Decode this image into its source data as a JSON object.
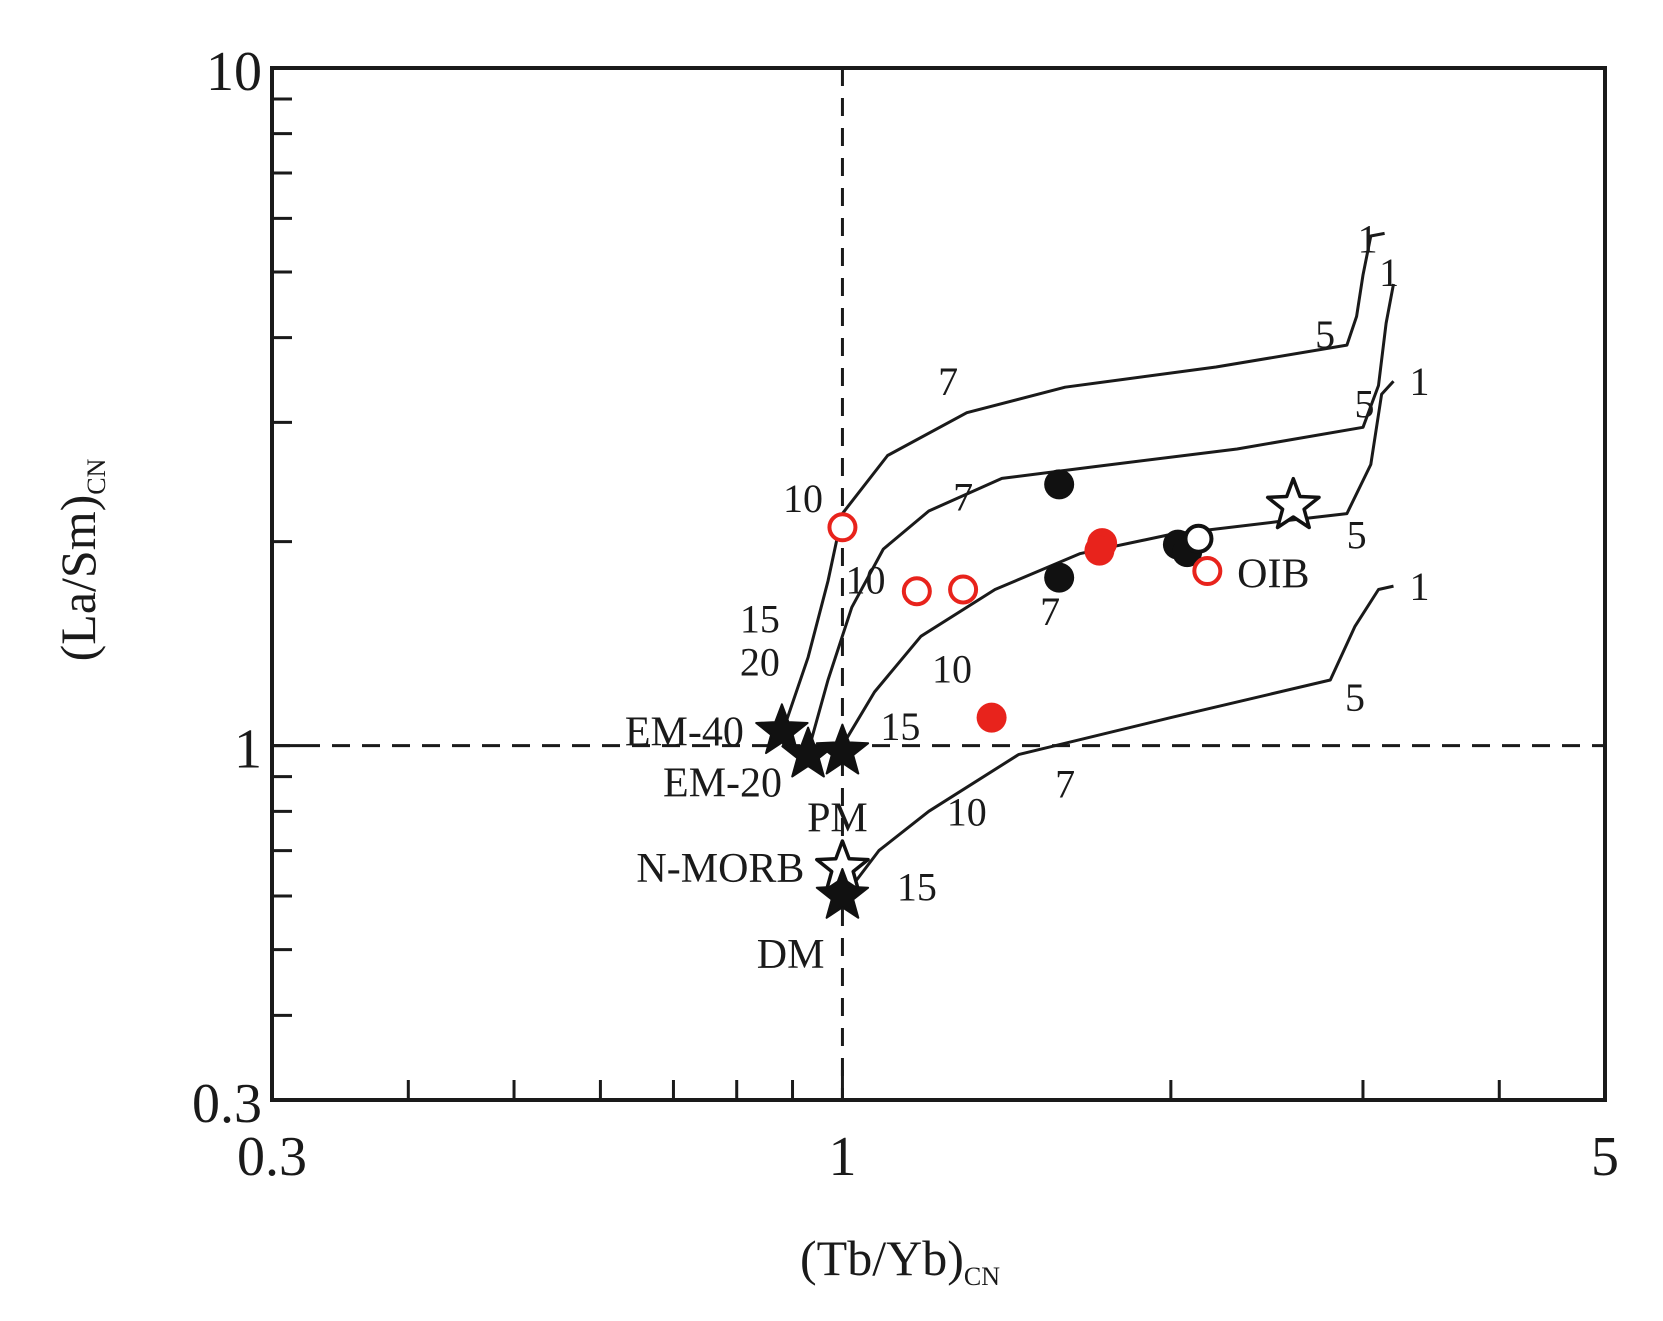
{
  "chart_data": {
    "type": "scatter",
    "title": "",
    "xlabel": {
      "main": "(Tb/Yb)",
      "sub": "CN"
    },
    "ylabel": {
      "main": "(La/Sm)",
      "sub": "CN"
    },
    "x_scale": "log",
    "y_scale": "log",
    "xlim": [
      0.3,
      5
    ],
    "ylim": [
      0.3,
      10
    ],
    "x_ticks_labeled": [
      {
        "value": 0.3,
        "label": "0.3"
      },
      {
        "value": 1,
        "label": "1"
      },
      {
        "value": 5,
        "label": "5"
      }
    ],
    "y_ticks_labeled": [
      {
        "value": 0.3,
        "label": "0.3"
      },
      {
        "value": 1,
        "label": "1"
      },
      {
        "value": 10,
        "label": "10"
      }
    ],
    "x_minor_ticks": [
      0.4,
      0.5,
      0.6,
      0.7,
      0.8,
      0.9,
      2,
      3,
      4
    ],
    "y_minor_ticks": [
      0.4,
      0.5,
      0.6,
      0.7,
      0.8,
      0.9,
      2,
      3,
      4,
      5,
      6,
      7,
      8,
      9
    ],
    "reference_lines": [
      {
        "axis": "x",
        "value": 1,
        "style": "dashed"
      },
      {
        "axis": "y",
        "value": 1,
        "style": "dashed"
      }
    ],
    "grid": false,
    "colors": {
      "axis": "#1a1a1a",
      "red": "#e8231c",
      "black": "#111111"
    },
    "melting_curves": [
      {
        "source": "EM-40",
        "points": [
          [
            0.88,
            1.04
          ],
          [
            0.93,
            1.35
          ],
          [
            0.97,
            1.75
          ],
          [
            1.0,
            2.2
          ],
          [
            1.1,
            2.68
          ],
          [
            1.3,
            3.1
          ],
          [
            1.6,
            3.38
          ],
          [
            2.2,
            3.62
          ],
          [
            2.9,
            3.9
          ],
          [
            2.96,
            4.3
          ],
          [
            3.0,
            4.95
          ],
          [
            3.05,
            5.65
          ],
          [
            3.14,
            5.7
          ]
        ],
        "labels": [
          {
            "text": "20",
            "x": 0.84,
            "y": 1.33
          },
          {
            "text": "15",
            "x": 0.84,
            "y": 1.54
          },
          {
            "text": "10",
            "x": 0.92,
            "y": 2.32
          },
          {
            "text": "7",
            "x": 1.25,
            "y": 3.45
          },
          {
            "text": "5",
            "x": 2.77,
            "y": 4.05
          },
          {
            "text": "1",
            "x": 3.03,
            "y": 5.6
          }
        ]
      },
      {
        "source": "EM-20",
        "points": [
          [
            0.93,
            0.98
          ],
          [
            0.97,
            1.25
          ],
          [
            1.02,
            1.6
          ],
          [
            1.09,
            1.95
          ],
          [
            1.2,
            2.22
          ],
          [
            1.4,
            2.48
          ],
          [
            1.7,
            2.58
          ],
          [
            2.3,
            2.74
          ],
          [
            3.0,
            2.95
          ],
          [
            3.1,
            3.4
          ],
          [
            3.15,
            4.2
          ],
          [
            3.2,
            4.8
          ]
        ],
        "labels": [
          {
            "text": "10",
            "x": 1.05,
            "y": 1.76
          },
          {
            "text": "7",
            "x": 1.29,
            "y": 2.33
          },
          {
            "text": "5",
            "x": 3.01,
            "y": 3.2
          },
          {
            "text": "1",
            "x": 3.17,
            "y": 5.0
          }
        ]
      },
      {
        "source": "PM",
        "points": [
          [
            1.0,
            1.0
          ],
          [
            1.07,
            1.2
          ],
          [
            1.18,
            1.45
          ],
          [
            1.38,
            1.7
          ],
          [
            1.65,
            1.92
          ],
          [
            2.0,
            2.05
          ],
          [
            2.5,
            2.14
          ],
          [
            2.9,
            2.2
          ],
          [
            3.05,
            2.6
          ],
          [
            3.12,
            3.3
          ],
          [
            3.2,
            3.45
          ]
        ],
        "labels": [
          {
            "text": "15",
            "x": 1.13,
            "y": 1.07
          },
          {
            "text": "10",
            "x": 1.26,
            "y": 1.3
          },
          {
            "text": "7",
            "x": 1.55,
            "y": 1.58
          },
          {
            "text": "5",
            "x": 2.96,
            "y": 2.05
          },
          {
            "text": "1",
            "x": 3.38,
            "y": 3.45
          }
        ]
      },
      {
        "source": "DM",
        "points": [
          [
            1.02,
            0.62
          ],
          [
            1.08,
            0.7
          ],
          [
            1.2,
            0.8
          ],
          [
            1.45,
            0.97
          ],
          [
            2.0,
            1.1
          ],
          [
            2.8,
            1.25
          ],
          [
            2.95,
            1.5
          ],
          [
            3.1,
            1.7
          ],
          [
            3.2,
            1.72
          ]
        ],
        "labels": [
          {
            "text": "15",
            "x": 1.17,
            "y": 0.62
          },
          {
            "text": "10",
            "x": 1.3,
            "y": 0.8
          },
          {
            "text": "7",
            "x": 1.6,
            "y": 0.88
          },
          {
            "text": "5",
            "x": 2.95,
            "y": 1.18
          },
          {
            "text": "1",
            "x": 3.38,
            "y": 1.72
          }
        ]
      }
    ],
    "series": [
      {
        "name": "",
        "marker": "filled-circle",
        "color": "#111111",
        "points": [
          [
            1.58,
            2.43
          ],
          [
            1.58,
            1.77
          ],
          [
            2.03,
            1.98
          ],
          [
            2.07,
            1.93
          ]
        ]
      },
      {
        "name": "",
        "marker": "open-circle",
        "color": "#111111",
        "points": [
          [
            2.12,
            2.02
          ]
        ]
      },
      {
        "name": "",
        "marker": "filled-circle",
        "color": "#e8231c",
        "points": [
          [
            1.73,
            1.99
          ],
          [
            1.72,
            1.94
          ],
          [
            1.37,
            1.1
          ]
        ]
      },
      {
        "name": "",
        "marker": "open-circle",
        "color": "#e8231c",
        "points": [
          [
            1.0,
            2.1
          ],
          [
            1.17,
            1.69
          ],
          [
            1.29,
            1.7
          ],
          [
            2.16,
            1.81
          ]
        ]
      }
    ],
    "end_members": [
      {
        "label": "EM-40",
        "x": 0.88,
        "y": 1.05,
        "marker": "filled-star",
        "label_pos": "left"
      },
      {
        "label": "EM-20",
        "x": 0.93,
        "y": 0.97,
        "marker": "filled-star",
        "label_pos": "left-below"
      },
      {
        "label": "PM",
        "x": 1.0,
        "y": 0.98,
        "marker": "filled-star",
        "label_pos": "below"
      },
      {
        "label": "N-MORB",
        "x": 1.0,
        "y": 0.66,
        "marker": "open-star",
        "label_pos": "left"
      },
      {
        "label": "DM",
        "x": 1.0,
        "y": 0.6,
        "marker": "filled-star",
        "label_pos": "below-left"
      },
      {
        "label": "OIB",
        "x": 2.59,
        "y": 2.26,
        "marker": "open-star",
        "label_pos": "below"
      }
    ]
  }
}
